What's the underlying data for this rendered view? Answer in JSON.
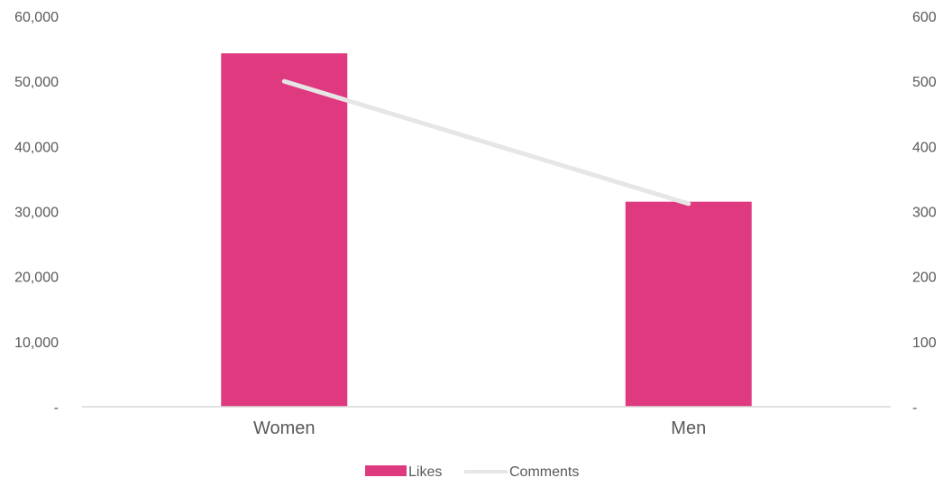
{
  "chart_data": {
    "type": "bar",
    "categories": [
      "Women",
      "Men"
    ],
    "series": [
      {
        "name": "Likes",
        "type": "bar",
        "axis": "left",
        "values": [
          54300,
          31500
        ],
        "color": "#DF3A80"
      },
      {
        "name": "Comments",
        "type": "line",
        "axis": "right",
        "values": [
          500,
          312
        ],
        "color": "#E6E6E6"
      }
    ],
    "left_axis": {
      "ylim": [
        0,
        60000
      ],
      "ticks": [
        {
          "value": 0,
          "label": "-"
        },
        {
          "value": 10000,
          "label": "10,000"
        },
        {
          "value": 20000,
          "label": "20,000"
        },
        {
          "value": 30000,
          "label": "30,000"
        },
        {
          "value": 40000,
          "label": "40,000"
        },
        {
          "value": 50000,
          "label": "50,000"
        },
        {
          "value": 60000,
          "label": "60,000"
        }
      ]
    },
    "right_axis": {
      "ylim": [
        0,
        600
      ],
      "ticks": [
        {
          "value": 0,
          "label": "-"
        },
        {
          "value": 100,
          "label": "100"
        },
        {
          "value": 200,
          "label": "200"
        },
        {
          "value": 300,
          "label": "300"
        },
        {
          "value": 400,
          "label": "400"
        },
        {
          "value": 500,
          "label": "500"
        },
        {
          "value": 600,
          "label": "600"
        }
      ]
    },
    "grid": false,
    "legend": {
      "position": "bottom",
      "items": [
        "Likes",
        "Comments"
      ]
    },
    "colors": {
      "axis_text": "#595959",
      "baseline": "#D9D9D9"
    }
  }
}
